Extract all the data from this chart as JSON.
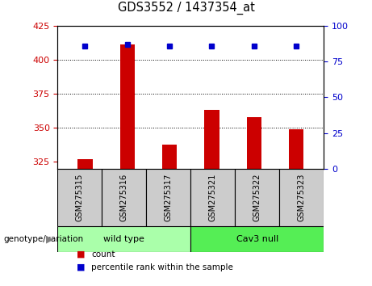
{
  "title": "GDS3552 / 1437354_at",
  "samples": [
    "GSM275315",
    "GSM275316",
    "GSM275317",
    "GSM275321",
    "GSM275322",
    "GSM275323"
  ],
  "counts": [
    327,
    411,
    338,
    363,
    358,
    349
  ],
  "percentile_ranks": [
    86,
    87,
    86,
    86,
    86,
    86
  ],
  "ylim_left": [
    320,
    425
  ],
  "ylim_right": [
    0,
    100
  ],
  "yticks_left": [
    325,
    350,
    375,
    400,
    425
  ],
  "yticks_right": [
    0,
    25,
    50,
    75,
    100
  ],
  "bar_color": "#cc0000",
  "dot_color": "#0000cc",
  "bar_bottom": 320,
  "groups": [
    {
      "label": "wild type",
      "indices": [
        0,
        1,
        2
      ],
      "color": "#aaffaa"
    },
    {
      "label": "Cav3 null",
      "indices": [
        3,
        4,
        5
      ],
      "color": "#55ee55"
    }
  ],
  "genotype_label": "genotype/variation",
  "legend_count_label": "count",
  "legend_percentile_label": "percentile rank within the sample",
  "x_positions": [
    1,
    2,
    3,
    4,
    5,
    6
  ],
  "tick_label_bg": "#cccccc",
  "plot_bg": "#ffffff",
  "ylabel_left_color": "#cc0000",
  "ylabel_right_color": "#0000cc",
  "gridline_ticks": [
    350,
    375,
    400
  ]
}
